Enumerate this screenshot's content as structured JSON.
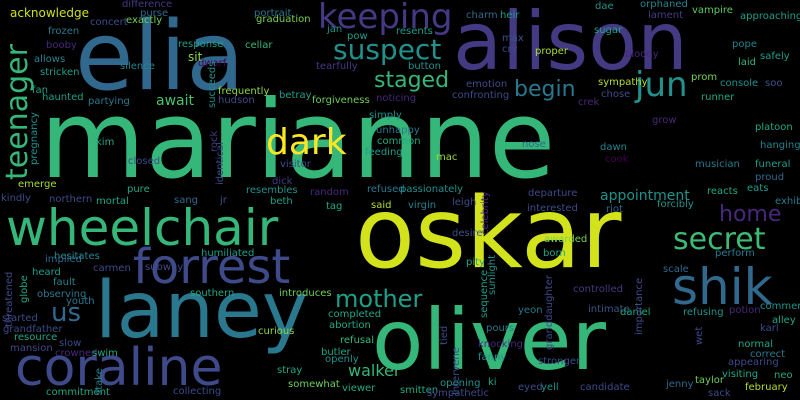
{
  "words": [
    {
      "text": "marianne",
      "color": "#35b779"
    },
    {
      "text": "oskar",
      "color": "#d2e21b"
    },
    {
      "text": "elia",
      "color": "#31688e"
    },
    {
      "text": "alison",
      "color": "#443a83"
    },
    {
      "text": "oliver",
      "color": "#35b779"
    },
    {
      "text": "laney",
      "color": "#2a788e"
    },
    {
      "text": "wheelchair",
      "color": "#35b779"
    },
    {
      "text": "coraline",
      "color": "#3e4a89"
    },
    {
      "text": "forrest",
      "color": "#3e4a89"
    },
    {
      "text": "shik",
      "color": "#31688e"
    },
    {
      "text": "keeping",
      "color": "#443a83"
    },
    {
      "text": "suspect",
      "color": "#21918c"
    },
    {
      "text": "dark",
      "color": "#fde725"
    },
    {
      "text": "teenager",
      "color": "#35b779"
    },
    {
      "text": "jun",
      "color": "#21918c"
    },
    {
      "text": "secret",
      "color": "#3bbb75"
    },
    {
      "text": "mother",
      "color": "#1f9e89"
    },
    {
      "text": "begin",
      "color": "#2a788e"
    },
    {
      "text": "staged",
      "color": "#35b779"
    },
    {
      "text": "home",
      "color": "#482878"
    },
    {
      "text": "us",
      "color": "#31688e"
    },
    {
      "text": "appointment",
      "color": "#21918c"
    },
    {
      "text": "walker",
      "color": "#35b779"
    },
    {
      "text": "await",
      "color": "#4ac16d"
    },
    {
      "text": "acknowledge",
      "color": "#cde11d"
    },
    {
      "text": "emerge",
      "color": "#a8db34"
    },
    {
      "text": "kindly",
      "color": "#3e4a89"
    },
    {
      "text": "haunted",
      "color": "#1f9e89"
    },
    {
      "text": "partying",
      "color": "#2a788e"
    },
    {
      "text": "frozen",
      "color": "#2a788e"
    },
    {
      "text": "allows",
      "color": "#26828e"
    },
    {
      "text": "stricken",
      "color": "#1f9e89"
    },
    {
      "text": "booby",
      "color": "#482878"
    },
    {
      "text": "concert",
      "color": "#3e4a89"
    },
    {
      "text": "difference",
      "color": "#443a83"
    },
    {
      "text": "exactly",
      "color": "#6ece58"
    },
    {
      "text": "purse",
      "color": "#31688e"
    },
    {
      "text": "response",
      "color": "#1f9e89"
    },
    {
      "text": "silence",
      "color": "#26828e"
    },
    {
      "text": "portrait",
      "color": "#2a788e"
    },
    {
      "text": "graduation",
      "color": "#7ad151"
    },
    {
      "text": "cellar",
      "color": "#35b779"
    },
    {
      "text": "sit",
      "color": "#8fd744"
    },
    {
      "text": "dwarf",
      "color": "#440154"
    },
    {
      "text": "jan",
      "color": "#21918c"
    },
    {
      "text": "pow",
      "color": "#1f9e89"
    },
    {
      "text": "tearfully",
      "color": "#443a83"
    },
    {
      "text": "resents",
      "color": "#1f9e89"
    },
    {
      "text": "button",
      "color": "#21918c"
    },
    {
      "text": "max",
      "color": "#3b528b"
    },
    {
      "text": "cry",
      "color": "#3e4a89"
    },
    {
      "text": "heir",
      "color": "#1f9e89"
    },
    {
      "text": "charm",
      "color": "#31688e"
    },
    {
      "text": "proper",
      "color": "#a8db34"
    },
    {
      "text": "sugar",
      "color": "#1f9e89"
    },
    {
      "text": "dae",
      "color": "#21918c"
    },
    {
      "text": "orphaned",
      "color": "#26828e"
    },
    {
      "text": "lament",
      "color": "#443a83"
    },
    {
      "text": "vampire",
      "color": "#5ec962"
    },
    {
      "text": "approaching",
      "color": "#1f9e89"
    },
    {
      "text": "bloody",
      "color": "#482878"
    },
    {
      "text": "pope",
      "color": "#26828e"
    },
    {
      "text": "safely",
      "color": "#1f9e89"
    },
    {
      "text": "laid",
      "color": "#35b779"
    },
    {
      "text": "console",
      "color": "#21918c"
    },
    {
      "text": "soo",
      "color": "#3b528b"
    },
    {
      "text": "sympathy",
      "color": "#b5de2b"
    },
    {
      "text": "chose",
      "color": "#3e4a89"
    },
    {
      "text": "prom",
      "color": "#7ad151"
    },
    {
      "text": "runner",
      "color": "#22a884"
    },
    {
      "text": "grow",
      "color": "#482878"
    },
    {
      "text": "platoon",
      "color": "#22a884"
    },
    {
      "text": "hanging",
      "color": "#26828e"
    },
    {
      "text": "funeral",
      "color": "#1f9e89"
    },
    {
      "text": "proud",
      "color": "#31688e"
    },
    {
      "text": "eats",
      "color": "#1f9e89"
    },
    {
      "text": "exhibit",
      "color": "#2a788e"
    },
    {
      "text": "musician",
      "color": "#2a788e"
    },
    {
      "text": "reacts",
      "color": "#22a884"
    },
    {
      "text": "perform",
      "color": "#2a788e"
    },
    {
      "text": "scale",
      "color": "#31688e"
    },
    {
      "text": "frequently",
      "color": "#8fd744"
    },
    {
      "text": "succeeds",
      "color": "#21918c"
    },
    {
      "text": "hudson",
      "color": "#3e4a89"
    },
    {
      "text": "betray",
      "color": "#1f9e89"
    },
    {
      "text": "noticing",
      "color": "#482878"
    },
    {
      "text": "forgiveness",
      "color": "#6ece58"
    },
    {
      "text": "emotion",
      "color": "#3e4a89"
    },
    {
      "text": "confronting",
      "color": "#3e4a89"
    },
    {
      "text": "simply",
      "color": "#21918c"
    },
    {
      "text": "unhappy",
      "color": "#2a788e"
    },
    {
      "text": "common",
      "color": "#22a884"
    },
    {
      "text": "feeding",
      "color": "#1f9e89"
    },
    {
      "text": "nose",
      "color": "#31688e"
    },
    {
      "text": "mac",
      "color": "#a0da39"
    },
    {
      "text": "dawn",
      "color": "#26828e"
    },
    {
      "text": "cook",
      "color": "#440154"
    },
    {
      "text": "closed",
      "color": "#3e4a89"
    },
    {
      "text": "kim",
      "color": "#22a884"
    },
    {
      "text": "identical",
      "color": "#3e4a89"
    },
    {
      "text": "visitor",
      "color": "#3e4a89"
    },
    {
      "text": "resembles",
      "color": "#21918c"
    },
    {
      "text": "refused",
      "color": "#2a788e"
    },
    {
      "text": "passionately",
      "color": "#21918c"
    },
    {
      "text": "departure",
      "color": "#3e4a89"
    },
    {
      "text": "pure",
      "color": "#22a884"
    },
    {
      "text": "sang",
      "color": "#31688e"
    },
    {
      "text": "jr",
      "color": "#3b528b"
    },
    {
      "text": "beth",
      "color": "#1f9e89"
    },
    {
      "text": "tag",
      "color": "#22a884"
    },
    {
      "text": "said",
      "color": "#b5de2b"
    },
    {
      "text": "virgin",
      "color": "#26828e"
    },
    {
      "text": "leigh",
      "color": "#3e4a89"
    },
    {
      "text": "interested",
      "color": "#3e4a89"
    },
    {
      "text": "riot",
      "color": "#31688e"
    },
    {
      "text": "forcibly",
      "color": "#21918c"
    },
    {
      "text": "northern",
      "color": "#3e4a89"
    },
    {
      "text": "mortal",
      "color": "#22a884"
    },
    {
      "text": "random",
      "color": "#482878"
    },
    {
      "text": "dick",
      "color": "#443a83"
    },
    {
      "text": "implied",
      "color": "#31688e"
    },
    {
      "text": "heard",
      "color": "#1f9e89"
    },
    {
      "text": "fault",
      "color": "#26828e"
    },
    {
      "text": "hesitates",
      "color": "#26828e"
    },
    {
      "text": "carmen",
      "color": "#3e4a89"
    },
    {
      "text": "humiliated",
      "color": "#1f9e89"
    },
    {
      "text": "awarded",
      "color": "#7ad151"
    },
    {
      "text": "pity",
      "color": "#22a884"
    },
    {
      "text": "desire",
      "color": "#3b528b"
    },
    {
      "text": "born",
      "color": "#22a884"
    },
    {
      "text": "controlled",
      "color": "#443a83"
    },
    {
      "text": "observing",
      "color": "#2a788e"
    },
    {
      "text": "youth",
      "color": "#2a788e"
    },
    {
      "text": "subway",
      "color": "#3e4a89"
    },
    {
      "text": "southern",
      "color": "#22a884"
    },
    {
      "text": "introduces",
      "color": "#6ece58"
    },
    {
      "text": "completed",
      "color": "#22a884"
    },
    {
      "text": "abortion",
      "color": "#22a884"
    },
    {
      "text": "started",
      "color": "#3e4a89"
    },
    {
      "text": "grandfather",
      "color": "#3e4a89"
    },
    {
      "text": "resource",
      "color": "#22a884"
    },
    {
      "text": "slow",
      "color": "#3e4a89"
    },
    {
      "text": "crowned",
      "color": "#482878"
    },
    {
      "text": "swim",
      "color": "#22a884"
    },
    {
      "text": "mansion",
      "color": "#3e4a89"
    },
    {
      "text": "curious",
      "color": "#8fd744"
    },
    {
      "text": "refusal",
      "color": "#35b779"
    },
    {
      "text": "butler",
      "color": "#22a884"
    },
    {
      "text": "openly",
      "color": "#21918c"
    },
    {
      "text": "stray",
      "color": "#22a884"
    },
    {
      "text": "somewhat",
      "color": "#6ece58"
    },
    {
      "text": "collecting",
      "color": "#3e4a89"
    },
    {
      "text": "commitment",
      "color": "#22a884"
    },
    {
      "text": "viewer",
      "color": "#22a884"
    },
    {
      "text": "smitten",
      "color": "#22a884"
    },
    {
      "text": "opening",
      "color": "#21918c"
    },
    {
      "text": "sympathetic",
      "color": "#3e4a89"
    },
    {
      "text": "ki",
      "color": "#22a884"
    },
    {
      "text": "fanny",
      "color": "#21918c"
    },
    {
      "text": "knocking",
      "color": "#482878"
    },
    {
      "text": "pours",
      "color": "#2a788e"
    },
    {
      "text": "yeon",
      "color": "#2a788e"
    },
    {
      "text": "eyed",
      "color": "#3e4a89"
    },
    {
      "text": "yell",
      "color": "#21918c"
    },
    {
      "text": "stronger",
      "color": "#3e4a89"
    },
    {
      "text": "candidate",
      "color": "#3e4a89"
    },
    {
      "text": "intimate",
      "color": "#3b528b"
    },
    {
      "text": "daniel",
      "color": "#22a884"
    },
    {
      "text": "refusing",
      "color": "#21918c"
    },
    {
      "text": "potion",
      "color": "#482878"
    },
    {
      "text": "comment",
      "color": "#21918c"
    },
    {
      "text": "alley",
      "color": "#22a884"
    },
    {
      "text": "karl",
      "color": "#3e4a89"
    },
    {
      "text": "normal",
      "color": "#22a884"
    },
    {
      "text": "correct",
      "color": "#2a788e"
    },
    {
      "text": "appearing",
      "color": "#3e4a89"
    },
    {
      "text": "visiting",
      "color": "#22a884"
    },
    {
      "text": "neo",
      "color": "#22a884"
    },
    {
      "text": "jenny",
      "color": "#31688e"
    },
    {
      "text": "taylor",
      "color": "#6ece58"
    },
    {
      "text": "sack",
      "color": "#3e4a89"
    },
    {
      "text": "february",
      "color": "#b5de2b"
    },
    {
      "text": "wet",
      "color": "#3e4a89"
    },
    {
      "text": "fan",
      "color": "#1f9e89"
    },
    {
      "text": "pregnancy",
      "color": "#21918c"
    },
    {
      "text": "globe",
      "color": "#22a884"
    },
    {
      "text": "threatened",
      "color": "#3e4a89"
    },
    {
      "text": "stake",
      "color": "#26828e"
    },
    {
      "text": "sequence",
      "color": "#1f9e89"
    },
    {
      "text": "sunlight",
      "color": "#21918c"
    },
    {
      "text": "granddaughter",
      "color": "#3e4a89"
    },
    {
      "text": "intervene",
      "color": "#3e4a89"
    },
    {
      "text": "tied",
      "color": "#3e4a89"
    },
    {
      "text": "celebrity",
      "color": "#482878"
    },
    {
      "text": "importance",
      "color": "#3e4a89"
    },
    {
      "text": "rock",
      "color": "#443a83"
    },
    {
      "text": "crek",
      "color": "#482878"
    }
  ]
}
